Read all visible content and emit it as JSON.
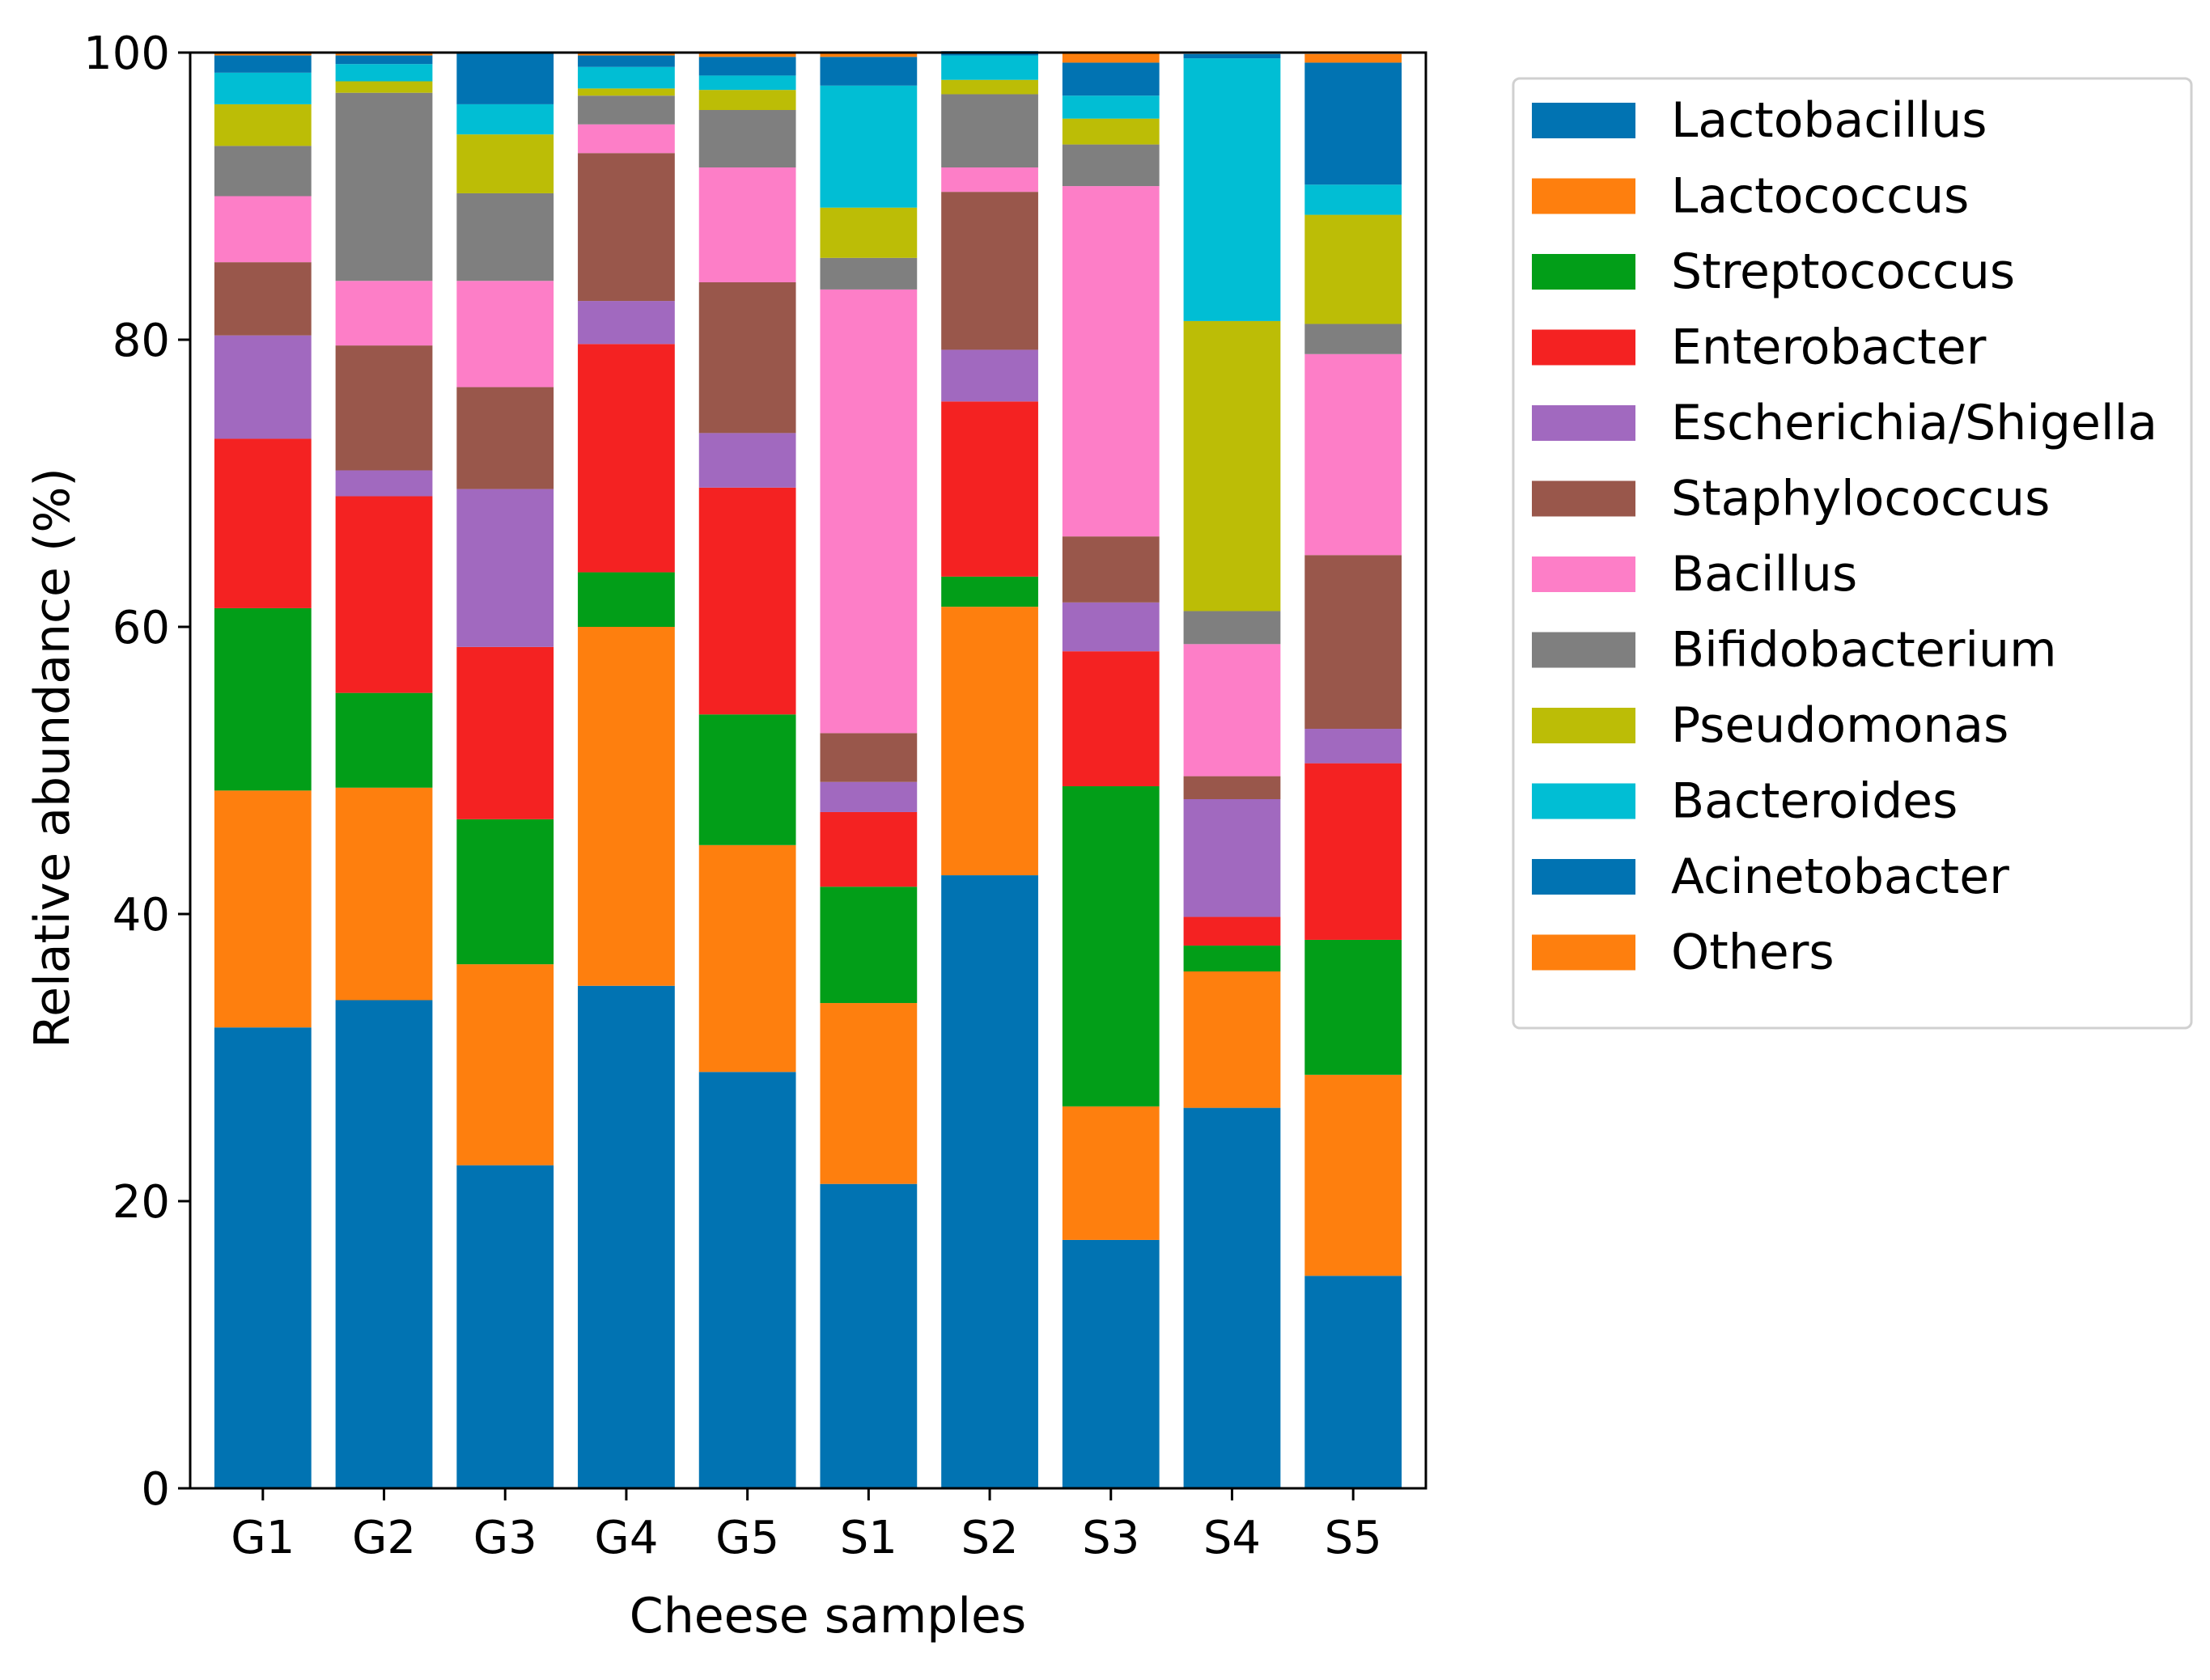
{
  "chart_data": {
    "type": "bar",
    "stacked": true,
    "xlabel": "Cheese samples",
    "ylabel": "Relative abundance (%)",
    "ylim": [
      0,
      100
    ],
    "yticks": [
      0,
      20,
      40,
      60,
      80,
      100
    ],
    "grid": false,
    "legend_position": "outside-right",
    "categories": [
      "G1",
      "G2",
      "G3",
      "G4",
      "G5",
      "S1",
      "S2",
      "S3",
      "S4",
      "S5"
    ],
    "series": [
      {
        "name": "Lactobacillus",
        "color": "#0173b2",
        "values": [
          32.1,
          34.0,
          22.5,
          35.0,
          29.0,
          21.2,
          42.7,
          17.3,
          26.5,
          14.8
        ]
      },
      {
        "name": "Lactococcus",
        "color": "#fe7f0e",
        "values": [
          16.5,
          14.8,
          14.0,
          25.0,
          15.8,
          12.6,
          18.7,
          9.3,
          9.5,
          14.0
        ]
      },
      {
        "name": "Streptococcus",
        "color": "#029e18",
        "values": [
          12.7,
          6.6,
          10.1,
          3.8,
          9.1,
          8.1,
          2.1,
          22.3,
          1.8,
          9.4
        ]
      },
      {
        "name": "Enterobacter",
        "color": "#f42222",
        "values": [
          11.8,
          13.7,
          12.0,
          15.9,
          15.8,
          5.2,
          12.2,
          9.4,
          2.0,
          12.3
        ]
      },
      {
        "name": "Escherichia/Shigella",
        "color": "#a169bf",
        "values": [
          7.2,
          1.8,
          11.0,
          3.0,
          3.8,
          2.1,
          3.6,
          3.4,
          8.2,
          2.4
        ]
      },
      {
        "name": "Staphylococcus",
        "color": "#99574b",
        "values": [
          5.1,
          8.7,
          7.1,
          10.3,
          10.5,
          3.4,
          11.0,
          4.6,
          1.6,
          12.1
        ]
      },
      {
        "name": "Bacillus",
        "color": "#fd7ec7",
        "values": [
          4.6,
          4.5,
          7.4,
          2.0,
          8.0,
          30.9,
          1.7,
          24.4,
          9.2,
          14.0
        ]
      },
      {
        "name": "Bifidobacterium",
        "color": "#7f7f7f",
        "values": [
          3.5,
          13.1,
          6.1,
          2.0,
          4.0,
          2.2,
          5.1,
          2.9,
          2.3,
          2.1
        ]
      },
      {
        "name": "Pseudomonas",
        "color": "#bcbd06",
        "values": [
          2.9,
          0.8,
          4.1,
          0.5,
          1.4,
          3.5,
          1.0,
          1.8,
          20.2,
          7.6
        ]
      },
      {
        "name": "Bacteroides",
        "color": "#01bed4",
        "values": [
          2.2,
          1.2,
          2.1,
          1.5,
          1.0,
          8.5,
          1.7,
          1.6,
          18.3,
          2.1
        ]
      },
      {
        "name": "Acinetobacter",
        "color": "#0173b2",
        "values": [
          1.2,
          0.6,
          3.6,
          0.8,
          1.3,
          2.0,
          0.3,
          2.3,
          0.3,
          8.5
        ]
      },
      {
        "name": "Others",
        "color": "#fe7f0e",
        "values": [
          0.2,
          0.2,
          0.0,
          0.2,
          0.3,
          0.3,
          0.0,
          0.7,
          0.0,
          0.6
        ]
      }
    ]
  }
}
